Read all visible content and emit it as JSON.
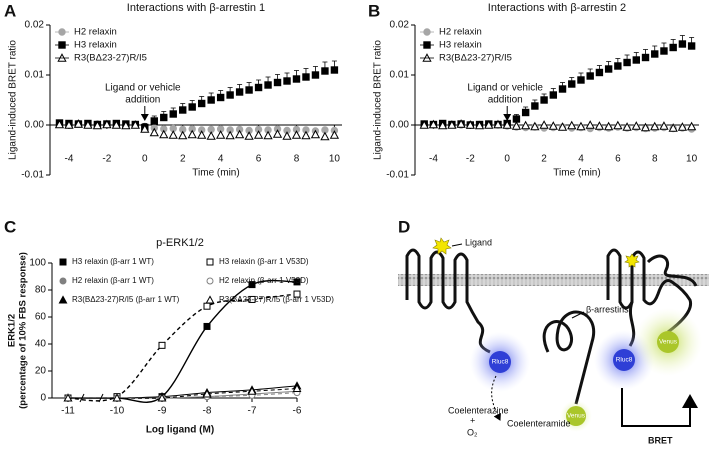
{
  "chart_data": [
    {
      "type": "scatter",
      "panel": "A",
      "title": "Interactions with β-arrestin 1",
      "x_label": "Time (min)",
      "y_label": "Ligand-induced BRET ratio",
      "x": [
        -4.5,
        -4,
        -3.5,
        -3,
        -2.5,
        -2,
        -1.5,
        -1,
        -0.5,
        0,
        0.5,
        1,
        1.5,
        2,
        2.5,
        3,
        3.5,
        4,
        4.5,
        5,
        5.5,
        6,
        6.5,
        7,
        7.5,
        8,
        8.5,
        9,
        9.5,
        10
      ],
      "series": [
        {
          "name": "H2 relaxin",
          "color": "#a6a6a6",
          "marker": "circle",
          "filled": true,
          "values": [
            0.0002,
            0.0001,
            0.0003,
            0.0001,
            0.0002,
            0.0001,
            0.0002,
            0.0,
            0.0001,
            -0.0003,
            -0.0006,
            -0.0008,
            -0.0007,
            -0.0009,
            -0.0008,
            -0.001,
            -0.0009,
            -0.0008,
            -0.001,
            -0.0009,
            -0.0011,
            -0.0009,
            -0.001,
            -0.0008,
            -0.0011,
            -0.0009,
            -0.001,
            -0.0012,
            -0.001,
            -0.0011
          ]
        },
        {
          "name": "H3 relaxin",
          "color": "#000000",
          "marker": "square",
          "filled": true,
          "values": [
            0.0004,
            0.0003,
            0.0002,
            0.0003,
            0.0001,
            0.0002,
            0.0003,
            0.0002,
            0.0001,
            -0.0005,
            0.0008,
            0.0015,
            0.0022,
            0.003,
            0.0036,
            0.0043,
            0.005,
            0.0055,
            0.006,
            0.0066,
            0.007,
            0.0075,
            0.008,
            0.0085,
            0.0088,
            0.0092,
            0.0096,
            0.01,
            0.0108,
            0.011
          ],
          "errors": [
            0.0006,
            0.0006,
            0.0006,
            0.0006,
            0.0006,
            0.0006,
            0.0006,
            0.0006,
            0.0006,
            0.0008,
            0.001,
            0.0012,
            0.0012,
            0.0013,
            0.0013,
            0.0014,
            0.0014,
            0.0014,
            0.0015,
            0.0015,
            0.0015,
            0.0015,
            0.0016,
            0.0016,
            0.0016,
            0.0017,
            0.0017,
            0.0017,
            0.0018,
            0.0018
          ]
        },
        {
          "name": "R3(BΔ23-27)R/I5",
          "color": "#000000",
          "marker": "triangle",
          "filled": false,
          "values": [
            0.0001,
            0.0,
            0.0002,
            0.0,
            -0.0001,
            0.0001,
            0.0,
            -0.0001,
            0.0,
            -0.0008,
            -0.0015,
            -0.0019,
            -0.002,
            -0.0021,
            -0.0019,
            -0.002,
            -0.0022,
            -0.002,
            -0.0021,
            -0.0019,
            -0.0022,
            -0.002,
            -0.0021,
            -0.0018,
            -0.0022,
            -0.002,
            -0.0021,
            -0.0019,
            -0.0023,
            -0.002
          ]
        }
      ],
      "xlim": [
        -5,
        10.4
      ],
      "ylim": [
        -0.01,
        0.02
      ],
      "xticks": [
        -4,
        -2,
        0,
        2,
        4,
        6,
        8,
        10
      ],
      "yticks": [
        -0.01,
        {
          "value": 0,
          "label": "0.00"
        },
        0.01,
        0.02
      ],
      "annotation": [
        "Ligand or vehicle",
        "addition"
      ],
      "annotation_x": 0,
      "legend": "upper left"
    },
    {
      "type": "scatter",
      "panel": "B",
      "title": "Interactions with β-arrestin 2",
      "x_label": "Time (min)",
      "y_label": "Ligand-induced BRET ratio",
      "x": [
        -4.5,
        -4,
        -3.5,
        -3,
        -2.5,
        -2,
        -1.5,
        -1,
        -0.5,
        0,
        0.5,
        1,
        1.5,
        2,
        2.5,
        3,
        3.5,
        4,
        4.5,
        5,
        5.5,
        6,
        6.5,
        7,
        7.5,
        8,
        8.5,
        9,
        9.5,
        10
      ],
      "series": [
        {
          "name": "H2 relaxin",
          "color": "#a6a6a6",
          "marker": "circle",
          "filled": true,
          "values": [
            0.0001,
            0.0,
            0.0002,
            0.0001,
            0.0,
            0.0001,
            0.0,
            0.0001,
            0.0,
            -0.0002,
            -0.0004,
            -0.0005,
            -0.0004,
            -0.0006,
            -0.0005,
            -0.0004,
            -0.0006,
            -0.0005,
            -0.0007,
            -0.0005,
            -0.0006,
            -0.0004,
            -0.0006,
            -0.0005,
            -0.0007,
            -0.0006,
            -0.0005,
            -0.0007,
            -0.0006,
            -0.0008
          ]
        },
        {
          "name": "H3 relaxin",
          "color": "#000000",
          "marker": "square",
          "filled": true,
          "values": [
            0.0002,
            0.0001,
            0.0003,
            0.0001,
            0.0002,
            0.0,
            0.0001,
            0.0002,
            0.0001,
            0.0003,
            0.0012,
            0.0025,
            0.0038,
            0.005,
            0.006,
            0.0072,
            0.0082,
            0.009,
            0.0098,
            0.0105,
            0.0112,
            0.0118,
            0.0125,
            0.013,
            0.0135,
            0.0142,
            0.0148,
            0.0155,
            0.0162,
            0.0158
          ],
          "errors": [
            0.0005,
            0.0005,
            0.0005,
            0.0005,
            0.0005,
            0.0005,
            0.0005,
            0.0005,
            0.0005,
            0.0006,
            0.0009,
            0.0011,
            0.0012,
            0.0012,
            0.0013,
            0.0013,
            0.0013,
            0.0014,
            0.0014,
            0.0014,
            0.0015,
            0.0015,
            0.0015,
            0.0015,
            0.0016,
            0.0016,
            0.0016,
            0.0016,
            0.0017,
            0.0017
          ]
        },
        {
          "name": "R3(BΔ23-27)R/I5",
          "color": "#000000",
          "marker": "triangle",
          "filled": false,
          "values": [
            0.0,
            0.0001,
            -0.0001,
            0.0,
            0.0002,
            0.0,
            -0.0001,
            0.0,
            0.0001,
            0.0,
            -0.0002,
            -0.0001,
            -0.0003,
            0.0,
            -0.0002,
            -0.0004,
            -0.0001,
            -0.0003,
            0.0,
            -0.0002,
            -0.0003,
            -0.0001,
            -0.0004,
            -0.0002,
            -0.0005,
            -0.0003,
            -0.0002,
            -0.0006,
            -0.0004,
            -0.0003
          ]
        }
      ],
      "xlim": [
        -5,
        10.4
      ],
      "ylim": [
        -0.01,
        0.02
      ],
      "xticks": [
        -4,
        -2,
        0,
        2,
        4,
        6,
        8,
        10
      ],
      "yticks": [
        -0.01,
        {
          "value": 0,
          "label": "0.00"
        },
        0.01,
        0.02
      ],
      "annotation": [
        "Ligand or vehicle",
        "addition"
      ],
      "annotation_x": 0,
      "legend": "upper left"
    },
    {
      "type": "line",
      "panel": "C",
      "title": "p-ERK1/2",
      "x_label": "Log ligand (M)",
      "y_label": [
        "ERK1/2",
        "(percentage of 10% FBS response)"
      ],
      "x": [
        -11,
        -10,
        -9,
        -8,
        -7,
        -6
      ],
      "series": [
        {
          "name": "H3 relaxin (β-arr 1 WT)",
          "color": "#000000",
          "marker": "square",
          "filled": true,
          "dashed": false,
          "values": [
            0,
            0,
            1,
            53,
            84,
            86
          ]
        },
        {
          "name": "H2 relaxin (β-arr 1 WT)",
          "color": "#808080",
          "marker": "circle",
          "filled": true,
          "dashed": false,
          "values": [
            0,
            0,
            0,
            1,
            3,
            5
          ]
        },
        {
          "name": "R3(BΔ23-27)R/I5 (β-arr 1 WT)",
          "color": "#000000",
          "marker": "triangle",
          "filled": true,
          "dashed": false,
          "values": [
            0,
            0,
            1,
            4,
            6,
            9
          ]
        },
        {
          "name": "H3 relaxin (β-arr 1 V53D)",
          "color": "#000000",
          "marker": "square",
          "filled": false,
          "dashed": true,
          "values": [
            0,
            1,
            39,
            68,
            73,
            77
          ]
        },
        {
          "name": "H2 relaxin (β-arr 1 V53D)",
          "color": "#808080",
          "marker": "circle",
          "filled": false,
          "dashed": true,
          "values": [
            0,
            0,
            0,
            1,
            2,
            4
          ]
        },
        {
          "name": "R3(BΔ23-27)R/I5 (β-arr 1 V53D)",
          "color": "#000000",
          "marker": "triangle",
          "filled": false,
          "dashed": true,
          "values": [
            0,
            0,
            0,
            3,
            5,
            7
          ]
        }
      ],
      "xlim": [
        -11.4,
        -6
      ],
      "ylim": [
        0,
        100
      ],
      "xticks": [
        -11,
        -10,
        -9,
        -8,
        -7,
        -6
      ],
      "yticks": [
        0,
        20,
        40,
        60,
        80,
        100
      ],
      "axis_break": true,
      "legend": "upper left"
    }
  ],
  "diagram": {
    "panel": "D",
    "ligand": "Ligand",
    "arrestins": "β-arrestins",
    "rluc8": [
      "Rluc8",
      "Rluc8"
    ],
    "venus": [
      "Venus",
      "Venus"
    ],
    "substrate": "Coelenterazine",
    "plus": "+",
    "oxygen": "O₂",
    "product": "Coelenteramide",
    "bret": "BRET"
  }
}
